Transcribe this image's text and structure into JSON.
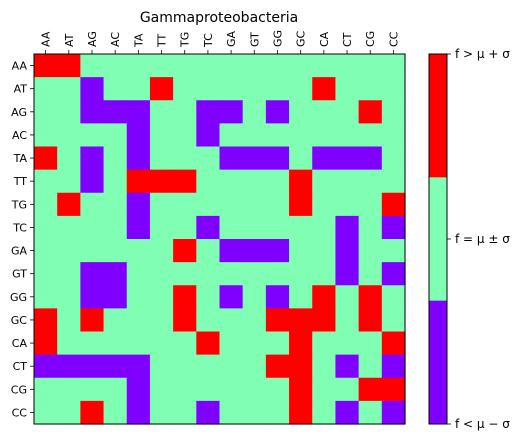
{
  "chart_data": {
    "type": "heatmap",
    "title": "Gammaproteobacteria",
    "x_labels": [
      "AA",
      "AT",
      "AG",
      "AC",
      "TA",
      "TT",
      "TG",
      "TC",
      "GA",
      "GT",
      "GG",
      "GC",
      "CA",
      "CT",
      "CG",
      "CC"
    ],
    "y_labels": [
      "AA",
      "AT",
      "AG",
      "AC",
      "TA",
      "TT",
      "TG",
      "TC",
      "GA",
      "GT",
      "GG",
      "GC",
      "CA",
      "CT",
      "CG",
      "CC"
    ],
    "color_levels": [
      -1,
      0,
      1
    ],
    "colors": {
      "-1": "#8000ff",
      "0": "#80ffb4",
      "1": "#ff0000"
    },
    "colorbar_labels": [
      "f > μ + σ",
      "f = μ ± σ",
      "f < μ − σ"
    ],
    "matrix": [
      [
        1,
        1,
        0,
        0,
        0,
        0,
        0,
        0,
        0,
        0,
        0,
        0,
        0,
        0,
        0,
        0
      ],
      [
        0,
        0,
        -1,
        0,
        0,
        1,
        0,
        0,
        0,
        0,
        0,
        0,
        1,
        0,
        0,
        0
      ],
      [
        0,
        0,
        -1,
        -1,
        -1,
        0,
        0,
        -1,
        -1,
        0,
        -1,
        0,
        0,
        0,
        1,
        0
      ],
      [
        0,
        0,
        0,
        0,
        -1,
        0,
        0,
        -1,
        0,
        0,
        0,
        0,
        0,
        0,
        0,
        0
      ],
      [
        1,
        0,
        -1,
        0,
        -1,
        0,
        0,
        0,
        -1,
        -1,
        -1,
        0,
        -1,
        -1,
        -1,
        0
      ],
      [
        0,
        0,
        -1,
        0,
        1,
        1,
        1,
        0,
        0,
        0,
        0,
        1,
        0,
        0,
        0,
        0
      ],
      [
        0,
        1,
        0,
        0,
        -1,
        0,
        0,
        0,
        0,
        0,
        0,
        1,
        0,
        0,
        0,
        1
      ],
      [
        0,
        0,
        0,
        0,
        -1,
        0,
        0,
        -1,
        0,
        0,
        0,
        0,
        0,
        -1,
        0,
        -1
      ],
      [
        0,
        0,
        0,
        0,
        0,
        0,
        1,
        0,
        -1,
        -1,
        -1,
        0,
        0,
        -1,
        0,
        0
      ],
      [
        0,
        0,
        -1,
        -1,
        0,
        0,
        0,
        0,
        0,
        0,
        0,
        0,
        0,
        -1,
        0,
        -1
      ],
      [
        0,
        0,
        -1,
        -1,
        0,
        0,
        1,
        0,
        -1,
        0,
        -1,
        0,
        1,
        0,
        1,
        0
      ],
      [
        1,
        0,
        1,
        0,
        0,
        0,
        1,
        0,
        0,
        0,
        1,
        1,
        1,
        0,
        1,
        0
      ],
      [
        1,
        0,
        0,
        0,
        0,
        0,
        0,
        1,
        0,
        0,
        0,
        1,
        0,
        0,
        0,
        1
      ],
      [
        -1,
        -1,
        -1,
        -1,
        -1,
        0,
        0,
        0,
        0,
        0,
        1,
        1,
        0,
        -1,
        0,
        -1
      ],
      [
        0,
        0,
        0,
        0,
        -1,
        0,
        0,
        0,
        0,
        0,
        0,
        1,
        0,
        0,
        1,
        1
      ],
      [
        0,
        0,
        1,
        0,
        -1,
        0,
        0,
        -1,
        0,
        0,
        0,
        1,
        0,
        -1,
        0,
        -1
      ]
    ]
  }
}
